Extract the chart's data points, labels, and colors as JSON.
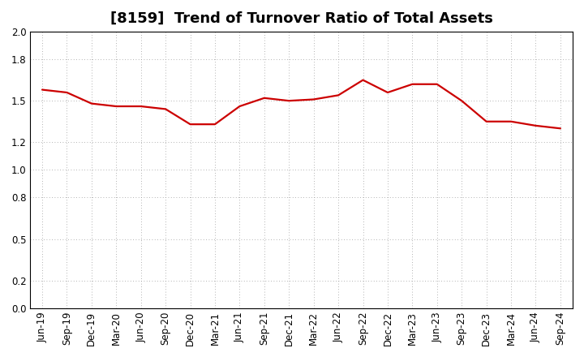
{
  "title": "[8159]  Trend of Turnover Ratio of Total Assets",
  "x_labels": [
    "Jun-19",
    "Sep-19",
    "Dec-19",
    "Mar-20",
    "Jun-20",
    "Sep-20",
    "Dec-20",
    "Mar-21",
    "Jun-21",
    "Sep-21",
    "Dec-21",
    "Mar-22",
    "Jun-22",
    "Sep-22",
    "Dec-22",
    "Mar-23",
    "Jun-23",
    "Sep-23",
    "Dec-23",
    "Mar-24",
    "Jun-24",
    "Sep-24"
  ],
  "values": [
    1.58,
    1.56,
    1.48,
    1.46,
    1.46,
    1.44,
    1.33,
    1.33,
    1.46,
    1.52,
    1.5,
    1.51,
    1.54,
    1.65,
    1.56,
    1.62,
    1.62,
    1.5,
    1.35,
    1.35,
    1.32,
    1.3
  ],
  "line_color": "#cc0000",
  "line_width": 1.6,
  "ylim": [
    0.0,
    2.0
  ],
  "yticks": [
    0.0,
    0.2,
    0.5,
    0.8,
    1.0,
    1.2,
    1.5,
    1.8,
    2.0
  ],
  "bg_color": "#ffffff",
  "grid_color": "#999999",
  "title_fontsize": 13,
  "tick_fontsize": 8.5
}
